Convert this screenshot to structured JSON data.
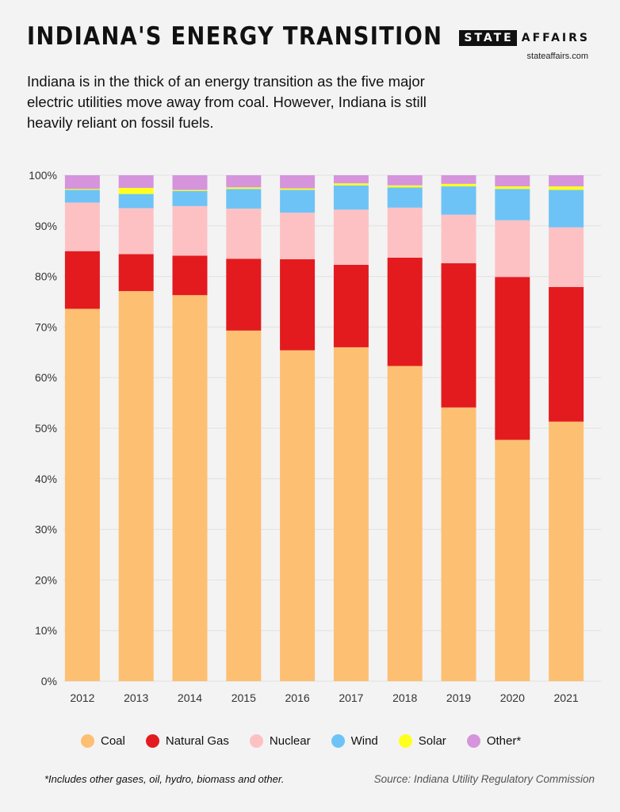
{
  "header": {
    "title": "INDIANA'S ENERGY TRANSITION",
    "brand_part1": "STATE",
    "brand_part2": "AFFAIRS",
    "url": "stateaffairs.com",
    "subtitle": "Indiana is in the thick of an energy transition as the five major electric utilities move away from coal. However, Indiana is still heavily reliant on fossil fuels."
  },
  "footer": {
    "footnote": "*Includes other gases, oil, hydro, biomass and other.",
    "source": "Source: Indiana Utility Regulatory Commission"
  },
  "chart_data": {
    "type": "bar",
    "stacked": true,
    "categories": [
      "2012",
      "2013",
      "2014",
      "2015",
      "2016",
      "2017",
      "2018",
      "2019",
      "2020",
      "2021"
    ],
    "ylim": [
      0,
      100
    ],
    "yticks": [
      "0%",
      "10%",
      "20%",
      "30%",
      "40%",
      "50%",
      "60%",
      "70%",
      "80%",
      "90%",
      "100%"
    ],
    "grid": true,
    "legend_position": "bottom",
    "series": [
      {
        "name": "Coal",
        "color": "#fdbf72",
        "values": [
          73.6,
          77.1,
          76.3,
          69.3,
          65.4,
          66.0,
          62.3,
          54.1,
          47.7,
          51.3
        ]
      },
      {
        "name": "Natural Gas",
        "color": "#e31b1f",
        "values": [
          11.4,
          7.3,
          7.8,
          14.2,
          18.0,
          16.3,
          21.4,
          28.5,
          32.2,
          26.6
        ]
      },
      {
        "name": "Nuclear",
        "color": "#fdc1c4",
        "values": [
          9.6,
          9.1,
          9.8,
          9.9,
          9.2,
          10.9,
          9.9,
          9.6,
          11.2,
          11.8
        ]
      },
      {
        "name": "Wind",
        "color": "#6ec3f6",
        "values": [
          2.5,
          2.8,
          3.0,
          3.9,
          4.5,
          4.8,
          4.0,
          5.6,
          6.2,
          7.4
        ]
      },
      {
        "name": "Solar",
        "color": "#ffff1f",
        "values": [
          0.2,
          1.2,
          0.2,
          0.3,
          0.3,
          0.4,
          0.4,
          0.5,
          0.5,
          0.7
        ]
      },
      {
        "name": "Other*",
        "color": "#d594dc",
        "values": [
          2.7,
          2.5,
          2.9,
          2.4,
          2.6,
          1.6,
          2.0,
          1.7,
          2.2,
          2.2
        ]
      }
    ]
  }
}
